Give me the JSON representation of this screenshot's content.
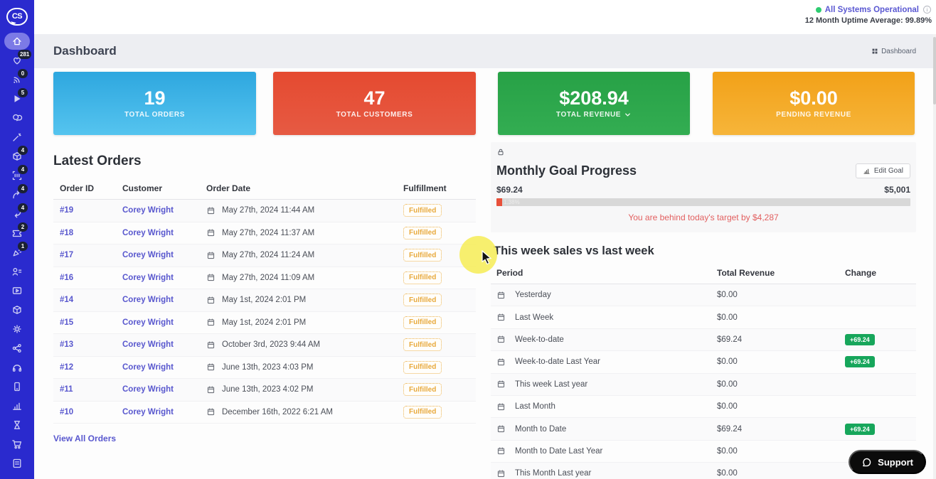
{
  "topbar": {
    "status": "All Systems Operational",
    "status_color": "#2ecc71",
    "uptime": "12 Month Uptime Average: 99.89%"
  },
  "header": {
    "title": "Dashboard",
    "breadcrumb": "Dashboard"
  },
  "sidebar": {
    "logo": "CS",
    "items": [
      {
        "icon": "home",
        "active": true
      },
      {
        "icon": "heart",
        "badge": "281"
      },
      {
        "icon": "broadcast",
        "badge": "0"
      },
      {
        "icon": "play",
        "badge": "5"
      },
      {
        "icon": "chat"
      },
      {
        "icon": "wand"
      },
      {
        "icon": "box",
        "badge": "4"
      },
      {
        "icon": "scan",
        "badge": "4"
      },
      {
        "icon": "arrow-forward",
        "badge": "4"
      },
      {
        "icon": "arrow-return",
        "badge": "4"
      },
      {
        "icon": "ticket",
        "badge": "2"
      },
      {
        "icon": "confetti",
        "badge": "1"
      },
      {
        "icon": "users"
      },
      {
        "icon": "video"
      },
      {
        "icon": "box2"
      },
      {
        "icon": "gear"
      },
      {
        "icon": "share"
      },
      {
        "icon": "headphones"
      },
      {
        "icon": "phone"
      },
      {
        "icon": "chart"
      },
      {
        "icon": "hourglass"
      },
      {
        "icon": "cart"
      },
      {
        "icon": "document"
      },
      {
        "icon": "register"
      }
    ]
  },
  "stats": [
    {
      "value": "19",
      "label": "TOTAL ORDERS",
      "color": "#3cb4e5"
    },
    {
      "value": "47",
      "label": "TOTAL CUSTOMERS",
      "color": "#e54a30"
    },
    {
      "value": "$208.94",
      "label": "TOTAL REVENUE",
      "color": "#27a146",
      "has_dropdown": true
    },
    {
      "value": "$0.00",
      "label": "PENDING REVENUE",
      "color": "#f2a118"
    }
  ],
  "latest_orders": {
    "title": "Latest Orders",
    "columns": [
      "Order ID",
      "Customer",
      "Order Date",
      "Fulfillment"
    ],
    "rows": [
      {
        "id": "#19",
        "customer": "Corey Wright",
        "date": "May 27th, 2024 11:44 AM",
        "status": "Fulfilled"
      },
      {
        "id": "#18",
        "customer": "Corey Wright",
        "date": "May 27th, 2024 11:37 AM",
        "status": "Fulfilled"
      },
      {
        "id": "#17",
        "customer": "Corey Wright",
        "date": "May 27th, 2024 11:24 AM",
        "status": "Fulfilled"
      },
      {
        "id": "#16",
        "customer": "Corey Wright",
        "date": "May 27th, 2024 11:09 AM",
        "status": "Fulfilled"
      },
      {
        "id": "#14",
        "customer": "Corey Wright",
        "date": "May 1st, 2024 2:01 PM",
        "status": "Fulfilled"
      },
      {
        "id": "#15",
        "customer": "Corey Wright",
        "date": "May 1st, 2024 2:01 PM",
        "status": "Fulfilled"
      },
      {
        "id": "#13",
        "customer": "Corey Wright",
        "date": "October 3rd, 2023 9:44 AM",
        "status": "Fulfilled"
      },
      {
        "id": "#12",
        "customer": "Corey Wright",
        "date": "June 13th, 2023 4:03 PM",
        "status": "Fulfilled"
      },
      {
        "id": "#11",
        "customer": "Corey Wright",
        "date": "June 13th, 2023 4:02 PM",
        "status": "Fulfilled"
      },
      {
        "id": "#10",
        "customer": "Corey Wright",
        "date": "December 16th, 2022 6:21 AM",
        "status": "Fulfilled"
      }
    ],
    "view_all": "View All Orders"
  },
  "monthly_goal": {
    "title": "Monthly Goal Progress",
    "edit_button": "Edit Goal",
    "current": "$69.24",
    "goal": "$5,001",
    "progress_pct": 1.38,
    "progress_label": "1.38%",
    "progress_color": "#e8503a",
    "warning": "You are behind today's target by $4,287"
  },
  "week_sales": {
    "title": "This week sales vs last week",
    "columns": [
      "Period",
      "Total Revenue",
      "Change"
    ],
    "rows": [
      {
        "period": "Yesterday",
        "revenue": "$0.00",
        "change": ""
      },
      {
        "period": "Last Week",
        "revenue": "$0.00",
        "change": ""
      },
      {
        "period": "Week-to-date",
        "revenue": "$69.24",
        "change": "+69.24"
      },
      {
        "period": "Week-to-date Last Year",
        "revenue": "$0.00",
        "change": "+69.24"
      },
      {
        "period": "This week Last year",
        "revenue": "$0.00",
        "change": ""
      },
      {
        "period": "Last Month",
        "revenue": "$0.00",
        "change": ""
      },
      {
        "period": "Month to Date",
        "revenue": "$69.24",
        "change": "+69.24"
      },
      {
        "period": "Month to Date Last Year",
        "revenue": "$0.00",
        "change": ""
      },
      {
        "period": "This Month Last year",
        "revenue": "$0.00",
        "change": ""
      }
    ],
    "change_badge_color": "#17a65b"
  },
  "support": {
    "label": "Support"
  }
}
